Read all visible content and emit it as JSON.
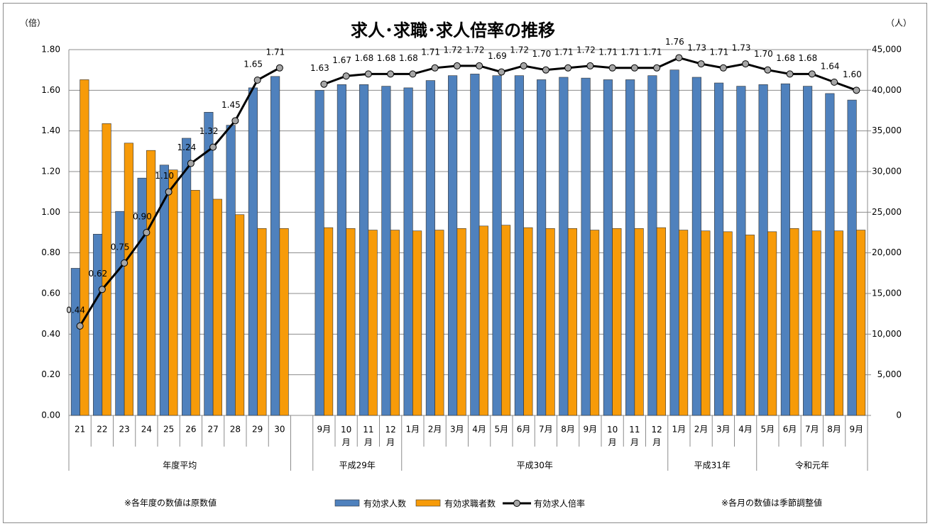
{
  "chart_data": {
    "type": "bar-line",
    "title": "求人･求職･求人倍率の推移",
    "y_unit": "（倍）",
    "y2_unit": "（人）",
    "notes": [
      "※各年度の数値は原数値",
      "※各月の数値は季節調整値"
    ],
    "groups": [
      {
        "label": "年度平均",
        "categories": [
          "21",
          "22",
          "23",
          "24",
          "25",
          "26",
          "27",
          "28",
          "29",
          "30"
        ]
      },
      {
        "label": null,
        "categories": [
          null
        ]
      },
      {
        "label": "平成29年",
        "categories": [
          "9月",
          "10月",
          "11月",
          "12月"
        ]
      },
      {
        "label": "平成30年",
        "categories": [
          "1月",
          "2月",
          "3月",
          "4月",
          "5月",
          "6月",
          "7月",
          "8月",
          "9月",
          "10月",
          "11月",
          "12月"
        ]
      },
      {
        "label": "平成31年",
        "categories": [
          "1月",
          "2月",
          "3月",
          "4月"
        ]
      },
      {
        "label": "令和元年",
        "categories": [
          "5月",
          "6月",
          "7月",
          "8月",
          "9月"
        ]
      }
    ],
    "series": [
      {
        "name": "有効求人数",
        "type": "bar",
        "axis": "y2",
        "color": "#4f81bd",
        "values": [
          18100,
          22300,
          25100,
          29200,
          30800,
          34100,
          37300,
          35700,
          40300,
          41700,
          null,
          40000,
          40700,
          40700,
          40500,
          40300,
          41200,
          41800,
          42000,
          41800,
          41800,
          41300,
          41600,
          41500,
          41300,
          41300,
          41800,
          42500,
          41600,
          40900,
          40500,
          40700,
          40800,
          40500,
          39600,
          38800
        ]
      },
      {
        "name": "有効求職者数",
        "type": "bar",
        "axis": "y2",
        "color": "#f79b09",
        "values": [
          41300,
          35900,
          33500,
          32600,
          30200,
          27700,
          26600,
          24700,
          23000,
          23000,
          null,
          23100,
          23000,
          22800,
          22800,
          22700,
          22800,
          23000,
          23300,
          23400,
          23100,
          23000,
          23000,
          22800,
          23000,
          23000,
          23100,
          22800,
          22700,
          22600,
          22200,
          22600,
          23000,
          22700,
          22700,
          22800
        ]
      },
      {
        "name": "有効求人倍率",
        "type": "line",
        "axis": "y",
        "color": "#000000",
        "marker_color": "#a6a6a6",
        "values": [
          0.44,
          0.62,
          0.75,
          0.9,
          1.1,
          1.24,
          1.32,
          1.45,
          1.65,
          1.71,
          null,
          1.63,
          1.67,
          1.68,
          1.68,
          1.68,
          1.71,
          1.72,
          1.72,
          1.69,
          1.72,
          1.7,
          1.71,
          1.72,
          1.71,
          1.71,
          1.71,
          1.76,
          1.73,
          1.71,
          1.73,
          1.7,
          1.68,
          1.68,
          1.64,
          1.6
        ],
        "value_labels": [
          "0.44",
          "0.62",
          "0.75",
          "0.90",
          "1.10",
          "1.24",
          "1.32",
          "1.45",
          "1.65",
          "1.71",
          null,
          "1.63",
          "1.67",
          "1.68",
          "1.68",
          "1.68",
          "1.71",
          "1.72",
          "1.72",
          "1.69",
          "1.72",
          "1.70",
          "1.71",
          "1.72",
          "1.71",
          "1.71",
          "1.71",
          "1.76",
          "1.73",
          "1.71",
          "1.73",
          "1.70",
          "1.68",
          "1.68",
          "1.64",
          "1.60"
        ]
      }
    ],
    "ylim": [
      0,
      1.8
    ],
    "yticks": [
      {
        "value": 0,
        "label": "0.00"
      },
      {
        "value": 0.2,
        "label": "0.20"
      },
      {
        "value": 0.4,
        "label": "0.40"
      },
      {
        "value": 0.6,
        "label": "0.60"
      },
      {
        "value": 0.8,
        "label": "0.80"
      },
      {
        "value": 1.0,
        "label": "1.00"
      },
      {
        "value": 1.2,
        "label": "1.20"
      },
      {
        "value": 1.4,
        "label": "1.40"
      },
      {
        "value": 1.6,
        "label": "1.60"
      },
      {
        "value": 1.8,
        "label": "1.80"
      }
    ],
    "y2lim": [
      0,
      45000
    ],
    "y2ticks": [
      0,
      {
        "value": 5000,
        "label": "5,000"
      },
      {
        "value": 10000,
        "label": "10,000"
      },
      {
        "value": 15000,
        "label": "15,000"
      },
      {
        "value": 20000,
        "label": "20,000"
      },
      {
        "value": 25000,
        "label": "25,000"
      },
      {
        "value": 30000,
        "label": "30,000"
      },
      {
        "value": 35000,
        "label": "35,000"
      },
      {
        "value": 40000,
        "label": "40,000"
      },
      {
        "value": 45000,
        "label": "45,000"
      }
    ],
    "grid": true
  }
}
